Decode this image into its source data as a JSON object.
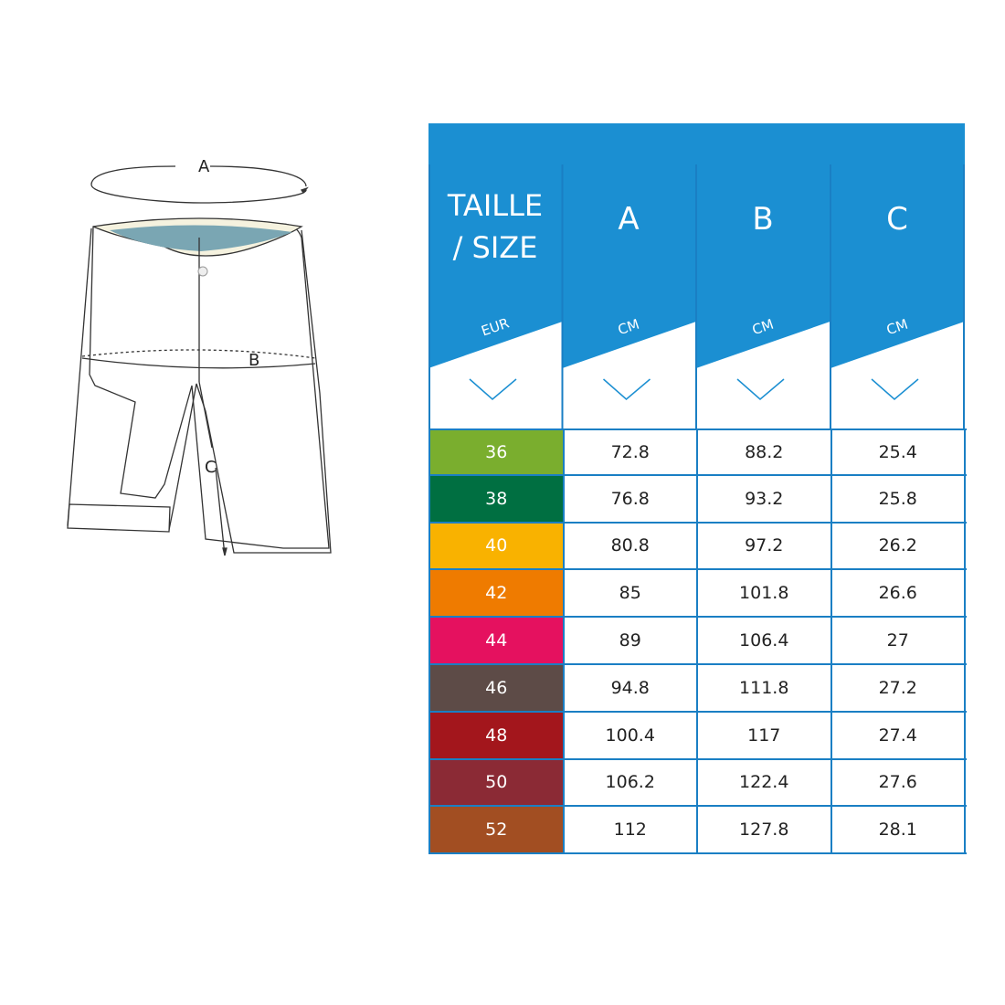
{
  "diagram": {
    "labels": [
      "A",
      "B",
      "C"
    ]
  },
  "table": {
    "header_color": "#1b8fd2",
    "title_line1": "TAILLE",
    "title_line2": "/ SIZE",
    "columns": [
      {
        "label": "",
        "unit": "EUR"
      },
      {
        "label": "A",
        "unit": "CM"
      },
      {
        "label": "B",
        "unit": "CM"
      },
      {
        "label": "C",
        "unit": "CM"
      }
    ],
    "chevron_icon": "chevron-down-icon",
    "rows": [
      {
        "size": "36",
        "color": "#7aae2e",
        "a": "72.8",
        "b": "88.2",
        "c": "25.4"
      },
      {
        "size": "38",
        "color": "#006f41",
        "a": "76.8",
        "b": "93.2",
        "c": "25.8"
      },
      {
        "size": "40",
        "color": "#f9b200",
        "a": "80.8",
        "b": "97.2",
        "c": "26.2"
      },
      {
        "size": "42",
        "color": "#ef7b00",
        "a": "85",
        "b": "101.8",
        "c": "26.6"
      },
      {
        "size": "44",
        "color": "#e5115f",
        "a": "89",
        "b": "106.4",
        "c": "27"
      },
      {
        "size": "46",
        "color": "#5d4b47",
        "a": "94.8",
        "b": "111.8",
        "c": "27.2"
      },
      {
        "size": "48",
        "color": "#a3161c",
        "a": "100.4",
        "b": "117",
        "c": "27.4"
      },
      {
        "size": "50",
        "color": "#8b2a35",
        "a": "106.2",
        "b": "122.4",
        "c": "27.6"
      },
      {
        "size": "52",
        "color": "#a24e22",
        "a": "112",
        "b": "127.8",
        "c": "28.1"
      }
    ]
  }
}
